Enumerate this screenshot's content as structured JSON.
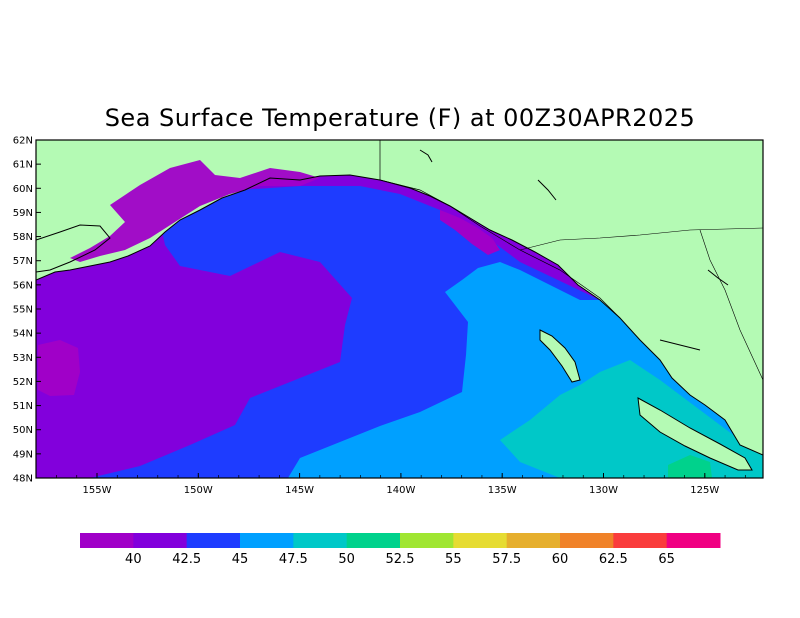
{
  "title": "Sea Surface Temperature (F) at 00Z30APR2025",
  "lat_ticks": [
    "62N",
    "61N",
    "60N",
    "59N",
    "58N",
    "57N",
    "56N",
    "55N",
    "54N",
    "53N",
    "52N",
    "51N",
    "50N",
    "49N",
    "48N"
  ],
  "lon_ticks": [
    "155W",
    "150W",
    "145W",
    "140W",
    "135W",
    "130W",
    "125W"
  ],
  "colorbar": {
    "labels": [
      "40",
      "42.5",
      "45",
      "47.5",
      "50",
      "52.5",
      "55",
      "57.5",
      "60",
      "62.5",
      "65"
    ],
    "colors": [
      "#a000c8",
      "#8200dc",
      "#1e3cff",
      "#00a0ff",
      "#00c8c8",
      "#00d28c",
      "#a0e632",
      "#e6dc32",
      "#e6af2d",
      "#f08228",
      "#fa3c3c",
      "#f00082"
    ]
  },
  "map_colors": {
    "land": "#b4fab4",
    "lt_40": "#a000c8",
    "t40_42_5": "#8200dc",
    "t42_5_45": "#1e3cff",
    "t45_47_5": "#00a0ff",
    "t47_5_50": "#00c8c8",
    "t50_52_5": "#00d28c"
  }
}
